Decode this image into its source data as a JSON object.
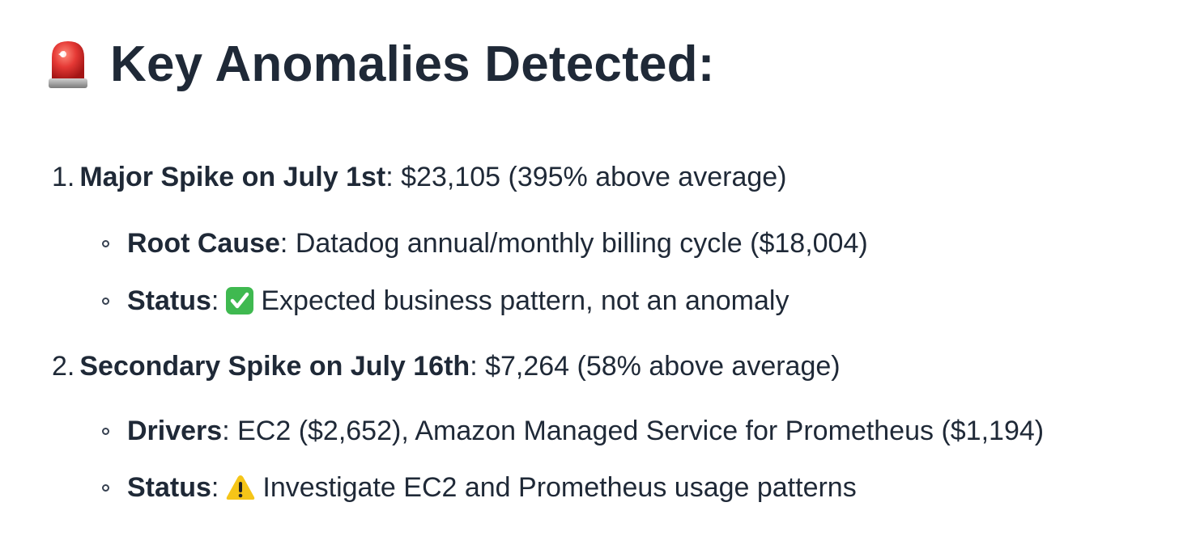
{
  "heading": {
    "title": "Key Anomalies Detected:",
    "icon": "siren-icon"
  },
  "anomalies": [
    {
      "number": "1.",
      "title": "Major Spike on July 1st",
      "detail": ": $23,105 (395% above average)",
      "sub": [
        {
          "label": "Root Cause",
          "separator": ":",
          "icon": "",
          "text": " Datadog annual/monthly billing cycle ($18,004)"
        },
        {
          "label": "Status",
          "separator": ":",
          "icon": "check-mark-icon",
          "text": "Expected business pattern, not an anomaly"
        }
      ]
    },
    {
      "number": "2.",
      "title": "Secondary Spike on July 16th",
      "detail": ": $7,264 (58% above average)",
      "sub": [
        {
          "label": "Drivers",
          "separator": ":",
          "icon": "",
          "text": " EC2 ($2,652), Amazon Managed Service for Prometheus ($1,194)"
        },
        {
          "label": "Status",
          "separator": ":",
          "icon": "warning-icon",
          "text": "Investigate EC2 and Prometheus usage patterns"
        }
      ]
    }
  ],
  "colors": {
    "text": "#1f2937",
    "check_green": "#3fb950",
    "warning_yellow": "#f5c518",
    "siren_red": "#d93025"
  }
}
